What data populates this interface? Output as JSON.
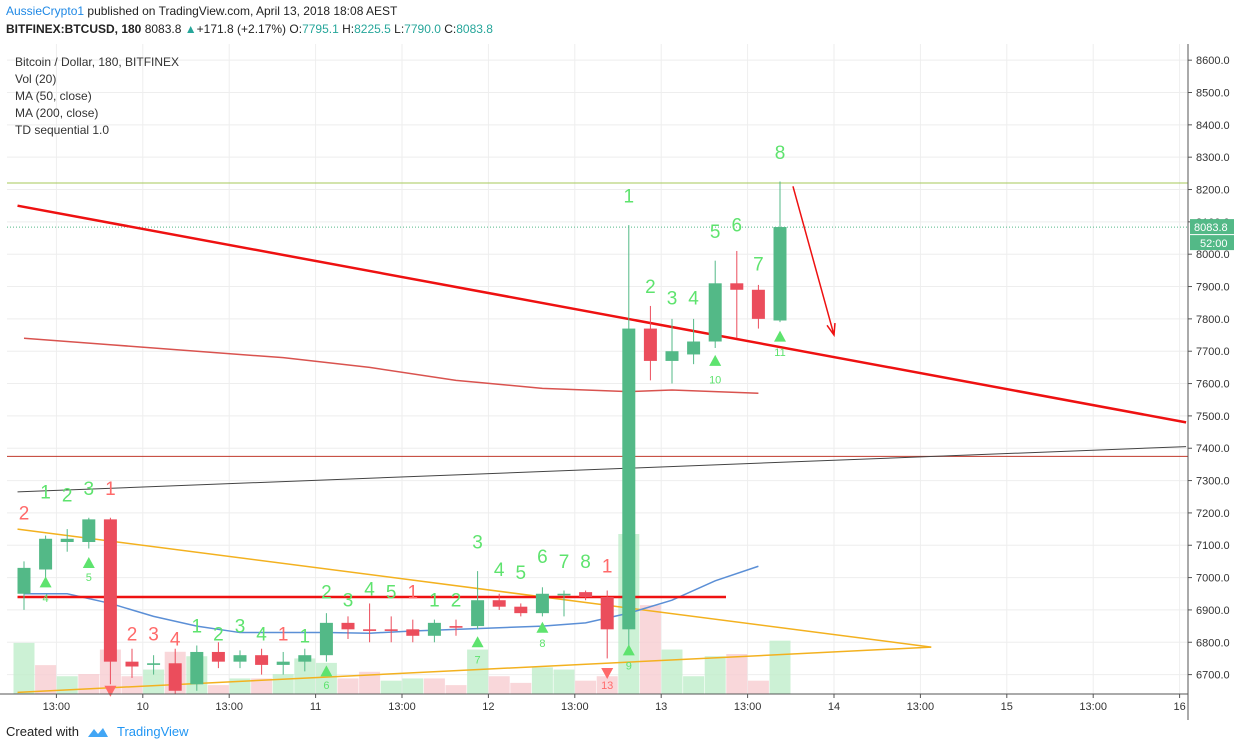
{
  "header": {
    "author": "AussieCrypto1",
    "published": "published on TradingView.com, April 13, 2018 18:08 AEST",
    "symbol": "BITFINEX:BTCUSD, 180",
    "last": "8083.8",
    "change": "+171.8 (+2.17%)",
    "o_label": "O:",
    "o": "7795.1",
    "h_label": "H:",
    "h": "8225.5",
    "l_label": "L:",
    "l": "7790.0",
    "c_label": "C:",
    "c": "8083.8"
  },
  "legend": {
    "title": "Bitcoin / Dollar, 180, BITFINEX",
    "vol": "Vol (20)",
    "ma50": "MA (50, close)",
    "ma200": "MA (200, close)",
    "td": "TD sequential 1.0"
  },
  "footer": {
    "created": "Created with",
    "brand": "TradingView"
  },
  "colors": {
    "up": "#53b987",
    "down": "#eb4d5c",
    "td_up": "#5ee36e",
    "td_down": "#ff6a6a",
    "trend": "#ee1111",
    "ma200": "#d9534f",
    "ma50": "#5b8fd6",
    "triangle": "#f3b11f",
    "axis": "#555555"
  },
  "chart_data": {
    "type": "candlestick",
    "ylim": [
      6640,
      8650
    ],
    "y_ticks": [
      6700,
      6800,
      6900,
      7000,
      7100,
      7200,
      7300,
      7400,
      7500,
      7600,
      7700,
      7800,
      7900,
      8000,
      8100,
      8200,
      8300,
      8400,
      8500,
      8600
    ],
    "y_tick_labels": [
      "6700.0",
      "6800.0",
      "6900.0",
      "7000.0",
      "7100.0",
      "7200.0",
      "7300.0",
      "7400.0",
      "7500.0",
      "7600.0",
      "7700.0",
      "7800.0",
      "7900.0",
      "8000.0",
      "8100.0",
      "8200.0",
      "8300.0",
      "8400.0",
      "8500.0",
      "8600.0"
    ],
    "x_ticks": [
      {
        "i": 1.5,
        "label": "13:00"
      },
      {
        "i": 5.5,
        "label": "10"
      },
      {
        "i": 9.5,
        "label": "13:00"
      },
      {
        "i": 13.5,
        "label": "11"
      },
      {
        "i": 17.5,
        "label": "13:00"
      },
      {
        "i": 21.5,
        "label": "12"
      },
      {
        "i": 25.5,
        "label": "13:00"
      },
      {
        "i": 29.5,
        "label": "13"
      },
      {
        "i": 33.5,
        "label": "13:00"
      },
      {
        "i": 37.5,
        "label": "14"
      },
      {
        "i": 41.5,
        "label": "13:00"
      },
      {
        "i": 45.5,
        "label": "15"
      },
      {
        "i": 49.5,
        "label": "13:00"
      },
      {
        "i": 53.5,
        "label": "16"
      }
    ],
    "price_label": "8083.8",
    "countdown": "52:00",
    "candles": [
      {
        "o": 6950,
        "h": 7050,
        "l": 6900,
        "c": 7030
      },
      {
        "o": 7025,
        "h": 7130,
        "l": 7000,
        "c": 7120
      },
      {
        "o": 7110,
        "h": 7150,
        "l": 7080,
        "c": 7120
      },
      {
        "o": 7110,
        "h": 7185,
        "l": 7090,
        "c": 7180
      },
      {
        "o": 7180,
        "h": 7185,
        "l": 6670,
        "c": 6740
      },
      {
        "o": 6740,
        "h": 6780,
        "l": 6690,
        "c": 6725
      },
      {
        "o": 6730,
        "h": 6760,
        "l": 6700,
        "c": 6735
      },
      {
        "o": 6735,
        "h": 6780,
        "l": 6640,
        "c": 6650
      },
      {
        "o": 6670,
        "h": 6790,
        "l": 6650,
        "c": 6770
      },
      {
        "o": 6770,
        "h": 6800,
        "l": 6720,
        "c": 6740
      },
      {
        "o": 6740,
        "h": 6775,
        "l": 6720,
        "c": 6760
      },
      {
        "o": 6760,
        "h": 6780,
        "l": 6700,
        "c": 6730
      },
      {
        "o": 6730,
        "h": 6770,
        "l": 6700,
        "c": 6740
      },
      {
        "o": 6740,
        "h": 6780,
        "l": 6710,
        "c": 6760
      },
      {
        "o": 6760,
        "h": 6890,
        "l": 6740,
        "c": 6860
      },
      {
        "o": 6860,
        "h": 6880,
        "l": 6810,
        "c": 6840
      },
      {
        "o": 6840,
        "h": 6920,
        "l": 6800,
        "c": 6835
      },
      {
        "o": 6840,
        "h": 6880,
        "l": 6800,
        "c": 6835
      },
      {
        "o": 6840,
        "h": 6870,
        "l": 6800,
        "c": 6820
      },
      {
        "o": 6820,
        "h": 6870,
        "l": 6800,
        "c": 6860
      },
      {
        "o": 6850,
        "h": 6870,
        "l": 6820,
        "c": 6845
      },
      {
        "o": 6850,
        "h": 7020,
        "l": 6840,
        "c": 6930
      },
      {
        "o": 6930,
        "h": 6950,
        "l": 6900,
        "c": 6910
      },
      {
        "o": 6910,
        "h": 6920,
        "l": 6880,
        "c": 6890
      },
      {
        "o": 6890,
        "h": 6970,
        "l": 6880,
        "c": 6950
      },
      {
        "o": 6945,
        "h": 6960,
        "l": 6880,
        "c": 6950
      },
      {
        "o": 6955,
        "h": 6960,
        "l": 6930,
        "c": 6940
      },
      {
        "o": 6940,
        "h": 6960,
        "l": 6750,
        "c": 6840
      },
      {
        "o": 6840,
        "h": 8090,
        "l": 6770,
        "c": 7770
      },
      {
        "o": 7770,
        "h": 7840,
        "l": 7610,
        "c": 7670
      },
      {
        "o": 7670,
        "h": 7800,
        "l": 7600,
        "c": 7700
      },
      {
        "o": 7690,
        "h": 7800,
        "l": 7660,
        "c": 7730
      },
      {
        "o": 7730,
        "h": 7980,
        "l": 7710,
        "c": 7910
      },
      {
        "o": 7910,
        "h": 8010,
        "l": 7740,
        "c": 7890
      },
      {
        "o": 7890,
        "h": 7905,
        "l": 7770,
        "c": 7800
      },
      {
        "o": 7795,
        "h": 8225,
        "l": 7790,
        "c": 8084
      }
    ],
    "volume": [
      {
        "v": 115,
        "up": true
      },
      {
        "v": 65,
        "up": false
      },
      {
        "v": 40,
        "up": true
      },
      {
        "v": 45,
        "up": false
      },
      {
        "v": 100,
        "up": false
      },
      {
        "v": 40,
        "up": false
      },
      {
        "v": 55,
        "up": true
      },
      {
        "v": 95,
        "up": false
      },
      {
        "v": 85,
        "up": true
      },
      {
        "v": 20,
        "up": false
      },
      {
        "v": 35,
        "up": true
      },
      {
        "v": 35,
        "up": false
      },
      {
        "v": 45,
        "up": true
      },
      {
        "v": 80,
        "up": true
      },
      {
        "v": 70,
        "up": true
      },
      {
        "v": 35,
        "up": false
      },
      {
        "v": 50,
        "up": false
      },
      {
        "v": 30,
        "up": true
      },
      {
        "v": 35,
        "up": true
      },
      {
        "v": 35,
        "up": false
      },
      {
        "v": 20,
        "up": false
      },
      {
        "v": 100,
        "up": true
      },
      {
        "v": 40,
        "up": false
      },
      {
        "v": 25,
        "up": false
      },
      {
        "v": 60,
        "up": true
      },
      {
        "v": 55,
        "up": true
      },
      {
        "v": 30,
        "up": false
      },
      {
        "v": 40,
        "up": false
      },
      {
        "v": 360,
        "up": true
      },
      {
        "v": 200,
        "up": false
      },
      {
        "v": 100,
        "up": true
      },
      {
        "v": 40,
        "up": true
      },
      {
        "v": 85,
        "up": true
      },
      {
        "v": 90,
        "up": false
      },
      {
        "v": 30,
        "up": false
      },
      {
        "v": 120,
        "up": true
      }
    ],
    "ma50_points": [
      [
        0,
        6950
      ],
      [
        2,
        6950
      ],
      [
        4,
        6920
      ],
      [
        6,
        6880
      ],
      [
        8,
        6850
      ],
      [
        10,
        6830
      ],
      [
        12,
        6830
      ],
      [
        14,
        6830
      ],
      [
        16,
        6828
      ],
      [
        18,
        6835
      ],
      [
        20,
        6840
      ],
      [
        22,
        6845
      ],
      [
        24,
        6850
      ],
      [
        26,
        6860
      ],
      [
        28,
        6890
      ],
      [
        30,
        6930
      ],
      [
        32,
        6990
      ],
      [
        34,
        7035
      ]
    ],
    "ma200_points": [
      [
        0,
        7740
      ],
      [
        4,
        7720
      ],
      [
        8,
        7700
      ],
      [
        12,
        7680
      ],
      [
        16,
        7650
      ],
      [
        20,
        7610
      ],
      [
        24,
        7585
      ],
      [
        28,
        7575
      ],
      [
        30,
        7580
      ],
      [
        34,
        7570
      ]
    ],
    "trendline": {
      "from": [
        -0.3,
        8150
      ],
      "to": [
        53.8,
        7480
      ]
    },
    "black_line": {
      "from": [
        -0.3,
        7265
      ],
      "to": [
        53.8,
        7405
      ]
    },
    "resist_line": 8220,
    "current_line": 8083.8,
    "ma_hline": 7375,
    "support_segment": {
      "from": [
        -0.3,
        6940
      ],
      "to": [
        32.5,
        6940
      ]
    },
    "triangle_upper": {
      "from": [
        -0.3,
        7150
      ],
      "to": [
        42,
        6785
      ]
    },
    "triangle_lower": {
      "from": [
        -0.3,
        6645
      ],
      "to": [
        42,
        6785
      ]
    },
    "arrow": {
      "from": [
        35.6,
        8210
      ],
      "to": [
        37.5,
        7750
      ]
    },
    "td_labels": [
      {
        "i": 0,
        "t": "2",
        "up": false,
        "y": 7180
      },
      {
        "i": 1,
        "t": "1",
        "up": true,
        "y": 7245
      },
      {
        "i": 2,
        "t": "2",
        "up": true,
        "y": 7235
      },
      {
        "i": 3,
        "t": "3",
        "up": true,
        "y": 7255
      },
      {
        "i": 4,
        "t": "1",
        "up": false,
        "y": 7255
      },
      {
        "i": 5,
        "t": "2",
        "up": false,
        "y": 6805
      },
      {
        "i": 6,
        "t": "3",
        "up": false,
        "y": 6805
      },
      {
        "i": 7,
        "t": "4",
        "up": false,
        "y": 6790
      },
      {
        "i": 8,
        "t": "1",
        "up": true,
        "y": 6830
      },
      {
        "i": 9,
        "t": "2",
        "up": true,
        "y": 6805
      },
      {
        "i": 10,
        "t": "3",
        "up": true,
        "y": 6830
      },
      {
        "i": 11,
        "t": "4",
        "up": true,
        "y": 6805
      },
      {
        "i": 12,
        "t": "1",
        "up": false,
        "y": 6805
      },
      {
        "i": 13,
        "t": "1",
        "up": true,
        "y": 6800
      },
      {
        "i": 14,
        "t": "2",
        "up": true,
        "y": 6935
      },
      {
        "i": 15,
        "t": "3",
        "up": true,
        "y": 6910
      },
      {
        "i": 16,
        "t": "4",
        "up": true,
        "y": 6945
      },
      {
        "i": 17,
        "t": "5",
        "up": true,
        "y": 6935
      },
      {
        "i": 18,
        "t": "1",
        "up": false,
        "y": 6935
      },
      {
        "i": 19,
        "t": "1",
        "up": true,
        "y": 6910
      },
      {
        "i": 20,
        "t": "2",
        "up": true,
        "y": 6910
      },
      {
        "i": 21,
        "t": "3",
        "up": true,
        "y": 7090
      },
      {
        "i": 22,
        "t": "4",
        "up": true,
        "y": 7005
      },
      {
        "i": 23,
        "t": "5",
        "up": true,
        "y": 6995
      },
      {
        "i": 24,
        "t": "6",
        "up": true,
        "y": 7045
      },
      {
        "i": 25,
        "t": "7",
        "up": true,
        "y": 7030
      },
      {
        "i": 26,
        "t": "8",
        "up": true,
        "y": 7030
      },
      {
        "i": 27,
        "t": "1",
        "up": false,
        "y": 7015
      },
      {
        "i": 28,
        "t": "1",
        "up": true,
        "y": 8160
      },
      {
        "i": 29,
        "t": "2",
        "up": true,
        "y": 7880
      },
      {
        "i": 30,
        "t": "3",
        "up": true,
        "y": 7845
      },
      {
        "i": 31,
        "t": "4",
        "up": true,
        "y": 7845
      },
      {
        "i": 32,
        "t": "5",
        "up": true,
        "y": 8050
      },
      {
        "i": 33,
        "t": "6",
        "up": true,
        "y": 8070
      },
      {
        "i": 34,
        "t": "7",
        "up": true,
        "y": 7950
      },
      {
        "i": 35,
        "t": "8",
        "up": true,
        "y": 8295
      }
    ],
    "td_markers": [
      {
        "i": 1,
        "dir": "up",
        "y": 6985,
        "num": "4",
        "num_y": 6925
      },
      {
        "i": 3,
        "dir": "up",
        "y": 7045,
        "num": "5",
        "num_y": 6990
      },
      {
        "i": 4,
        "dir": "down",
        "y": 6650,
        "num": "",
        "num_y": 0
      },
      {
        "i": 14,
        "dir": "up",
        "y": 6710,
        "num": "6",
        "num_y": 6655
      },
      {
        "i": 21,
        "dir": "up",
        "y": 6800,
        "num": "7",
        "num_y": 6735
      },
      {
        "i": 24,
        "dir": "up",
        "y": 6845,
        "num": "8",
        "num_y": 6785
      },
      {
        "i": 27,
        "dir": "down",
        "y": 6705,
        "num": "13",
        "num_y": 6655
      },
      {
        "i": 28,
        "dir": "up",
        "y": 6775,
        "num": "9",
        "num_y": 6715
      },
      {
        "i": 32,
        "dir": "up",
        "y": 7670,
        "num": "10",
        "num_y": 7600
      },
      {
        "i": 35,
        "dir": "up",
        "y": 7745,
        "num": "11",
        "num_y": 7685
      }
    ]
  }
}
